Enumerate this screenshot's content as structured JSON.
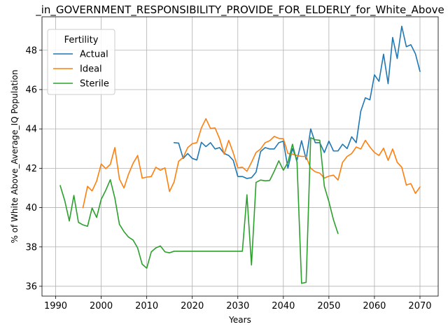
{
  "chart_data": {
    "type": "line",
    "title": "_in_GOVERNMENT_RESPONSIBILITY_PROVIDE_FOR_ELDERLY_for_White_Above",
    "xlabel": "Years",
    "ylabel": "% of White Above_Average_IQ Population",
    "xlim": [
      1987,
      2074
    ],
    "ylim": [
      35.5,
      49.7
    ],
    "xticks": [
      1990,
      2000,
      2010,
      2020,
      2030,
      2040,
      2050,
      2060,
      2070
    ],
    "yticks": [
      36,
      38,
      40,
      42,
      44,
      46,
      48
    ],
    "grid": true,
    "legend": {
      "title": "Fertility",
      "position": "top-left"
    },
    "series": [
      {
        "name": "Actual",
        "color": "#1f77b4",
        "points": [
          [
            2016,
            43.3
          ],
          [
            2017,
            43.28
          ],
          [
            2018,
            42.5
          ],
          [
            2019,
            42.75
          ],
          [
            2020,
            42.5
          ],
          [
            2021,
            42.42
          ],
          [
            2022,
            43.32
          ],
          [
            2023,
            43.1
          ],
          [
            2024,
            43.3
          ],
          [
            2025,
            42.98
          ],
          [
            2026,
            43.05
          ],
          [
            2027,
            42.75
          ],
          [
            2028,
            42.65
          ],
          [
            2029,
            42.4
          ],
          [
            2030,
            41.58
          ],
          [
            2031,
            41.58
          ],
          [
            2032,
            41.48
          ],
          [
            2033,
            41.52
          ],
          [
            2034,
            41.8
          ],
          [
            2035,
            42.85
          ],
          [
            2036,
            43.05
          ],
          [
            2037,
            42.98
          ],
          [
            2038,
            42.98
          ],
          [
            2039,
            43.3
          ],
          [
            2040,
            43.38
          ],
          [
            2041,
            42.0
          ],
          [
            2042,
            43.0
          ],
          [
            2043,
            42.42
          ],
          [
            2044,
            43.4
          ],
          [
            2045,
            42.45
          ],
          [
            2046,
            44.0
          ],
          [
            2047,
            43.3
          ],
          [
            2048,
            43.3
          ],
          [
            2049,
            42.8
          ],
          [
            2050,
            43.38
          ],
          [
            2051,
            42.88
          ],
          [
            2052,
            42.88
          ],
          [
            2053,
            43.22
          ],
          [
            2054,
            43.0
          ],
          [
            2055,
            43.6
          ],
          [
            2056,
            43.3
          ],
          [
            2057,
            44.9
          ],
          [
            2058,
            45.58
          ],
          [
            2059,
            45.48
          ],
          [
            2060,
            46.75
          ],
          [
            2061,
            46.42
          ],
          [
            2062,
            47.8
          ],
          [
            2063,
            46.3
          ],
          [
            2064,
            48.65
          ],
          [
            2065,
            47.58
          ],
          [
            2066,
            49.22
          ],
          [
            2067,
            48.18
          ],
          [
            2068,
            48.28
          ],
          [
            2069,
            47.82
          ],
          [
            2070,
            46.92
          ]
        ]
      },
      {
        "name": "Ideal",
        "color": "#ff7f0e",
        "points": [
          [
            1996,
            40.0
          ],
          [
            1997,
            41.08
          ],
          [
            1998,
            40.85
          ],
          [
            1999,
            41.35
          ],
          [
            2000,
            42.22
          ],
          [
            2001,
            41.98
          ],
          [
            2002,
            42.2
          ],
          [
            2003,
            43.05
          ],
          [
            2004,
            41.45
          ],
          [
            2005,
            41.0
          ],
          [
            2006,
            41.7
          ],
          [
            2007,
            42.25
          ],
          [
            2008,
            42.65
          ],
          [
            2009,
            41.5
          ],
          [
            2010,
            41.55
          ],
          [
            2011,
            41.58
          ],
          [
            2012,
            42.05
          ],
          [
            2013,
            41.9
          ],
          [
            2014,
            42.02
          ],
          [
            2015,
            40.82
          ],
          [
            2016,
            41.3
          ],
          [
            2017,
            42.35
          ],
          [
            2018,
            42.55
          ],
          [
            2019,
            43.05
          ],
          [
            2020,
            43.25
          ],
          [
            2021,
            43.3
          ],
          [
            2022,
            44.05
          ],
          [
            2023,
            44.52
          ],
          [
            2024,
            44.02
          ],
          [
            2025,
            44.05
          ],
          [
            2026,
            43.5
          ],
          [
            2027,
            42.72
          ],
          [
            2028,
            43.42
          ],
          [
            2029,
            42.78
          ],
          [
            2030,
            42.02
          ],
          [
            2031,
            42.05
          ],
          [
            2032,
            41.85
          ],
          [
            2033,
            42.3
          ],
          [
            2034,
            42.8
          ],
          [
            2035,
            42.98
          ],
          [
            2036,
            43.3
          ],
          [
            2037,
            43.4
          ],
          [
            2038,
            43.62
          ],
          [
            2039,
            43.52
          ],
          [
            2040,
            43.5
          ],
          [
            2041,
            42.75
          ],
          [
            2042,
            42.72
          ],
          [
            2043,
            42.65
          ],
          [
            2044,
            42.6
          ],
          [
            2045,
            42.6
          ],
          [
            2046,
            42.0
          ],
          [
            2047,
            41.82
          ],
          [
            2048,
            41.75
          ],
          [
            2049,
            41.5
          ],
          [
            2050,
            41.6
          ],
          [
            2051,
            41.65
          ],
          [
            2052,
            41.4
          ],
          [
            2053,
            42.3
          ],
          [
            2054,
            42.6
          ],
          [
            2055,
            42.75
          ],
          [
            2056,
            43.08
          ],
          [
            2057,
            42.98
          ],
          [
            2058,
            43.42
          ],
          [
            2059,
            43.08
          ],
          [
            2060,
            42.8
          ],
          [
            2061,
            42.65
          ],
          [
            2062,
            43.02
          ],
          [
            2063,
            42.4
          ],
          [
            2064,
            42.98
          ],
          [
            2065,
            42.3
          ],
          [
            2066,
            42.05
          ],
          [
            2067,
            41.15
          ],
          [
            2068,
            41.22
          ],
          [
            2069,
            40.72
          ],
          [
            2070,
            41.05
          ]
        ]
      },
      {
        "name": "Sterile",
        "color": "#2ca02c",
        "points": [
          [
            1991,
            41.12
          ],
          [
            1992,
            40.35
          ],
          [
            1993,
            39.32
          ],
          [
            1994,
            40.62
          ],
          [
            1995,
            39.25
          ],
          [
            1996,
            39.12
          ],
          [
            1997,
            39.05
          ],
          [
            1998,
            39.98
          ],
          [
            1999,
            39.5
          ],
          [
            2000,
            40.42
          ],
          [
            2001,
            40.88
          ],
          [
            2002,
            41.42
          ],
          [
            2003,
            40.48
          ],
          [
            2004,
            39.15
          ],
          [
            2005,
            38.78
          ],
          [
            2006,
            38.5
          ],
          [
            2007,
            38.35
          ],
          [
            2008,
            37.95
          ],
          [
            2009,
            37.12
          ],
          [
            2010,
            36.92
          ],
          [
            2011,
            37.75
          ],
          [
            2012,
            37.95
          ],
          [
            2013,
            38.05
          ],
          [
            2014,
            37.75
          ],
          [
            2015,
            37.7
          ],
          [
            2016,
            37.78
          ],
          [
            2017,
            37.78
          ],
          [
            2018,
            37.78
          ],
          [
            2019,
            37.78
          ],
          [
            2020,
            37.78
          ],
          [
            2021,
            37.78
          ],
          [
            2022,
            37.78
          ],
          [
            2023,
            37.78
          ],
          [
            2024,
            37.78
          ],
          [
            2025,
            37.78
          ],
          [
            2026,
            37.78
          ],
          [
            2027,
            37.78
          ],
          [
            2028,
            37.78
          ],
          [
            2029,
            37.78
          ],
          [
            2030,
            37.78
          ],
          [
            2031,
            37.78
          ],
          [
            2032,
            40.65
          ],
          [
            2033,
            37.08
          ],
          [
            2034,
            41.28
          ],
          [
            2035,
            41.4
          ],
          [
            2036,
            41.36
          ],
          [
            2037,
            41.38
          ],
          [
            2038,
            41.85
          ],
          [
            2039,
            42.38
          ],
          [
            2040,
            41.9
          ],
          [
            2041,
            42.3
          ],
          [
            2042,
            43.22
          ],
          [
            2043,
            42.3
          ],
          [
            2044,
            36.15
          ],
          [
            2045,
            36.2
          ],
          [
            2046,
            43.55
          ],
          [
            2047,
            43.45
          ],
          [
            2048,
            43.42
          ],
          [
            2049,
            41.08
          ],
          [
            2050,
            40.3
          ],
          [
            2051,
            39.38
          ],
          [
            2052,
            38.68
          ]
        ]
      }
    ]
  }
}
